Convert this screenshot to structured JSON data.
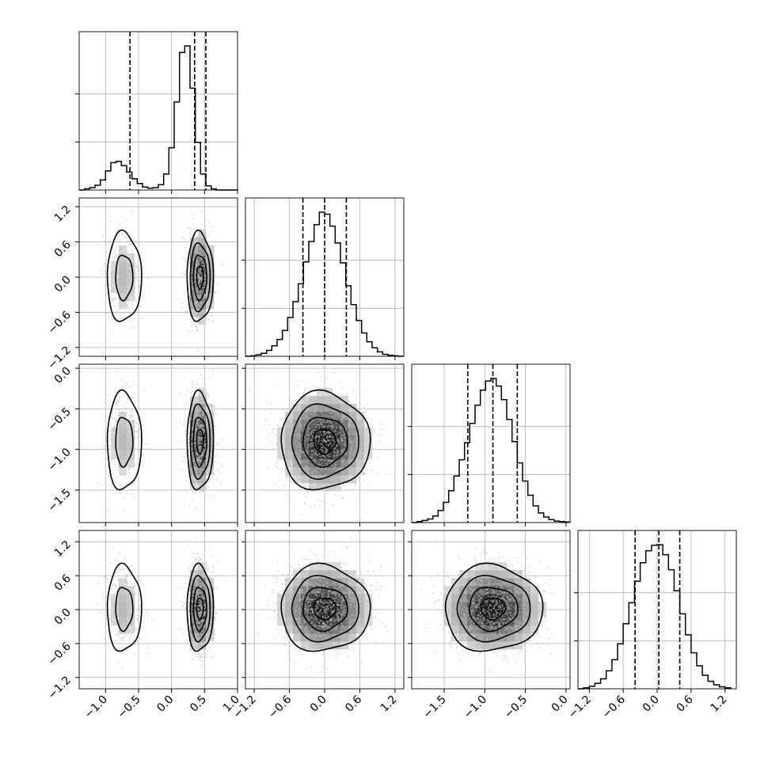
{
  "chart_data": {
    "type": "corner",
    "title": "",
    "grid": true,
    "parameters": [
      {
        "name": "",
        "range": [
          -1.4,
          1.0
        ],
        "ticks": [
          -1.0,
          -0.5,
          0.0,
          0.5,
          1.0
        ],
        "tick_labels": [
          "−1.0",
          "−0.5",
          "0.0",
          "0.5",
          "1.0"
        ],
        "quantiles": [
          -0.63,
          0.35,
          0.52
        ],
        "hist": {
          "edges": [
            -1.4,
            -1.32,
            -1.24,
            -1.16,
            -1.08,
            -1.0,
            -0.92,
            -0.84,
            -0.76,
            -0.68,
            -0.6,
            -0.52,
            -0.44,
            -0.36,
            -0.28,
            -0.2,
            -0.12,
            -0.04,
            0.04,
            0.12,
            0.2,
            0.28,
            0.36,
            0.44,
            0.52,
            0.6,
            0.68,
            0.76,
            0.84,
            0.92,
            1.0
          ],
          "counts": [
            0,
            2,
            4,
            8,
            17,
            32,
            46,
            48,
            41,
            30,
            19,
            11,
            5,
            3,
            4,
            9,
            27,
            71,
            148,
            231,
            242,
            171,
            80,
            27,
            7,
            2,
            0,
            0,
            0,
            0
          ]
        }
      },
      {
        "name": "",
        "range": [
          -1.35,
          1.35
        ],
        "ticks": [
          -1.2,
          -0.6,
          0.0,
          0.6,
          1.2
        ],
        "tick_labels": [
          "−1.2",
          "−0.6",
          "0.0",
          "0.6",
          "1.2"
        ],
        "quantiles": [
          -0.37,
          0.0,
          0.37
        ],
        "hist": {
          "edges": [
            -1.35,
            -1.26,
            -1.17,
            -1.08,
            -0.99,
            -0.9,
            -0.81,
            -0.72,
            -0.63,
            -0.54,
            -0.45,
            -0.36,
            -0.27,
            -0.18,
            -0.09,
            0.0,
            0.09,
            0.18,
            0.27,
            0.36,
            0.45,
            0.54,
            0.63,
            0.72,
            0.81,
            0.9,
            0.99,
            1.08,
            1.17,
            1.26,
            1.35
          ],
          "counts": [
            0,
            1,
            3,
            6,
            12,
            21,
            34,
            52,
            78,
            110,
            146,
            190,
            231,
            265,
            290,
            286,
            262,
            228,
            188,
            142,
            104,
            72,
            47,
            29,
            17,
            9,
            4,
            2,
            1,
            0
          ]
        }
      },
      {
        "name": "",
        "range": [
          -1.9,
          0.05
        ],
        "ticks": [
          -1.5,
          -1.0,
          -0.5,
          0.0
        ],
        "tick_labels": [
          "−1.5",
          "−1.0",
          "−0.5",
          "0.0"
        ],
        "quantiles": [
          -1.21,
          -0.9,
          -0.6
        ],
        "hist": {
          "edges": [
            -1.9,
            -1.835,
            -1.77,
            -1.705,
            -1.64,
            -1.575,
            -1.51,
            -1.445,
            -1.38,
            -1.315,
            -1.25,
            -1.185,
            -1.12,
            -1.055,
            -0.99,
            -0.925,
            -0.86,
            -0.795,
            -0.73,
            -0.665,
            -0.6,
            -0.535,
            -0.47,
            -0.405,
            -0.34,
            -0.275,
            -0.21,
            -0.145,
            -0.08,
            -0.015,
            0.05
          ],
          "counts": [
            0,
            2,
            4,
            7,
            13,
            24,
            40,
            63,
            92,
            124,
            158,
            196,
            232,
            262,
            280,
            285,
            270,
            243,
            204,
            160,
            118,
            82,
            54,
            33,
            19,
            11,
            6,
            3,
            2,
            1
          ]
        }
      },
      {
        "name": "",
        "range": [
          -1.4,
          1.4
        ],
        "ticks": [
          -1.2,
          -0.6,
          0.0,
          0.6,
          1.2
        ],
        "tick_labels": [
          "−1.2",
          "−0.6",
          "0.0",
          "0.6",
          "1.2"
        ],
        "quantiles": [
          -0.39,
          0.03,
          0.4
        ],
        "hist": {
          "edges": [
            -1.4,
            -1.3,
            -1.2,
            -1.1,
            -1.0,
            -0.9,
            -0.8,
            -0.7,
            -0.6,
            -0.5,
            -0.4,
            -0.3,
            -0.2,
            -0.1,
            0.0,
            0.1,
            0.2,
            0.3,
            0.4,
            0.5,
            0.6,
            0.7,
            0.8,
            0.9,
            1.0,
            1.1,
            1.2,
            1.3
          ],
          "counts": [
            0,
            2,
            5,
            11,
            20,
            36,
            58,
            90,
            130,
            172,
            215,
            252,
            276,
            287,
            288,
            268,
            238,
            196,
            150,
            108,
            72,
            46,
            27,
            15,
            8,
            4,
            2,
            0
          ]
        }
      }
    ],
    "joint": {
      "mode_a": {
        "mean0": -0.72,
        "sd0": 0.13,
        "weight": 0.25
      },
      "mode_b": {
        "mean0": 0.43,
        "sd0": 0.1,
        "weight": 0.75
      },
      "mean1": 0.0,
      "sd1": 0.38,
      "mean2": -0.9,
      "sd2": 0.3,
      "mean3": 0.02,
      "sd3": 0.38
    }
  }
}
